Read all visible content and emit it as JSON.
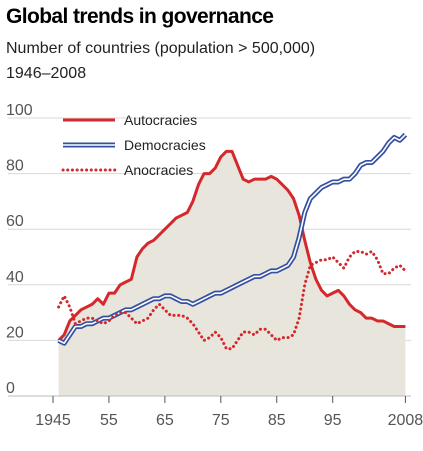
{
  "chart_data": {
    "type": "line",
    "title": "Global trends in governance",
    "subtitle": "Number of countries (population > 500,000)",
    "period": "1946–2008",
    "xlabel": "",
    "ylabel": "",
    "xlim": [
      1945,
      2009
    ],
    "ylim": [
      0,
      100
    ],
    "x_ticks": [
      1945,
      1955,
      1965,
      1975,
      1985,
      1995,
      2008
    ],
    "x_tick_labels": [
      "1945",
      "55",
      "65",
      "75",
      "85",
      "95",
      "2008"
    ],
    "y_ticks": [
      0,
      20,
      40,
      60,
      80,
      100
    ],
    "grid": true,
    "legend_position": "top-left",
    "colors": {
      "Autocracies": "#d4282c",
      "Democracies": "#3550a0",
      "Anocracies": "#d4282c",
      "area_fill": "#e7e5dc",
      "grid": "#d8d8d8",
      "tick": "#555555"
    },
    "series": [
      {
        "name": "Autocracies",
        "style": "solid",
        "filled": true,
        "points": [
          [
            1946,
            20
          ],
          [
            1947,
            22
          ],
          [
            1948,
            27
          ],
          [
            1949,
            29
          ],
          [
            1950,
            31
          ],
          [
            1951,
            32
          ],
          [
            1952,
            33
          ],
          [
            1953,
            35
          ],
          [
            1954,
            33
          ],
          [
            1955,
            37
          ],
          [
            1956,
            37
          ],
          [
            1957,
            40
          ],
          [
            1958,
            41
          ],
          [
            1959,
            42
          ],
          [
            1960,
            50
          ],
          [
            1961,
            53
          ],
          [
            1962,
            55
          ],
          [
            1963,
            56
          ],
          [
            1964,
            58
          ],
          [
            1965,
            60
          ],
          [
            1966,
            62
          ],
          [
            1967,
            64
          ],
          [
            1968,
            65
          ],
          [
            1969,
            66
          ],
          [
            1970,
            70
          ],
          [
            1971,
            76
          ],
          [
            1972,
            80
          ],
          [
            1973,
            80
          ],
          [
            1974,
            82
          ],
          [
            1975,
            86
          ],
          [
            1976,
            88
          ],
          [
            1977,
            88
          ],
          [
            1978,
            83
          ],
          [
            1979,
            78
          ],
          [
            1980,
            77
          ],
          [
            1981,
            78
          ],
          [
            1982,
            78
          ],
          [
            1983,
            78
          ],
          [
            1984,
            79
          ],
          [
            1985,
            78
          ],
          [
            1986,
            76
          ],
          [
            1987,
            74
          ],
          [
            1988,
            71
          ],
          [
            1989,
            65
          ],
          [
            1990,
            56
          ],
          [
            1991,
            48
          ],
          [
            1992,
            42
          ],
          [
            1993,
            38
          ],
          [
            1994,
            36
          ],
          [
            1995,
            37
          ],
          [
            1996,
            38
          ],
          [
            1997,
            36
          ],
          [
            1998,
            33
          ],
          [
            1999,
            31
          ],
          [
            2000,
            30
          ],
          [
            2001,
            28
          ],
          [
            2002,
            28
          ],
          [
            2003,
            27
          ],
          [
            2004,
            27
          ],
          [
            2005,
            26
          ],
          [
            2006,
            25
          ],
          [
            2007,
            25
          ],
          [
            2008,
            25
          ]
        ]
      },
      {
        "name": "Democracies",
        "style": "double",
        "filled": false,
        "points": [
          [
            1946,
            20
          ],
          [
            1947,
            19
          ],
          [
            1948,
            22
          ],
          [
            1949,
            25
          ],
          [
            1950,
            25
          ],
          [
            1951,
            26
          ],
          [
            1952,
            26
          ],
          [
            1953,
            27
          ],
          [
            1954,
            28
          ],
          [
            1955,
            28
          ],
          [
            1956,
            29
          ],
          [
            1957,
            30
          ],
          [
            1958,
            31
          ],
          [
            1959,
            31
          ],
          [
            1960,
            32
          ],
          [
            1961,
            33
          ],
          [
            1962,
            34
          ],
          [
            1963,
            35
          ],
          [
            1964,
            35
          ],
          [
            1965,
            36
          ],
          [
            1966,
            36
          ],
          [
            1967,
            35
          ],
          [
            1968,
            34
          ],
          [
            1969,
            34
          ],
          [
            1970,
            33
          ],
          [
            1971,
            34
          ],
          [
            1972,
            35
          ],
          [
            1973,
            36
          ],
          [
            1974,
            37
          ],
          [
            1975,
            37
          ],
          [
            1976,
            38
          ],
          [
            1977,
            39
          ],
          [
            1978,
            40
          ],
          [
            1979,
            41
          ],
          [
            1980,
            42
          ],
          [
            1981,
            43
          ],
          [
            1982,
            43
          ],
          [
            1983,
            44
          ],
          [
            1984,
            45
          ],
          [
            1985,
            45
          ],
          [
            1986,
            46
          ],
          [
            1987,
            47
          ],
          [
            1988,
            50
          ],
          [
            1989,
            57
          ],
          [
            1990,
            66
          ],
          [
            1991,
            71
          ],
          [
            1992,
            73
          ],
          [
            1993,
            75
          ],
          [
            1994,
            76
          ],
          [
            1995,
            77
          ],
          [
            1996,
            77
          ],
          [
            1997,
            78
          ],
          [
            1998,
            78
          ],
          [
            1999,
            80
          ],
          [
            2000,
            83
          ],
          [
            2001,
            84
          ],
          [
            2002,
            84
          ],
          [
            2003,
            86
          ],
          [
            2004,
            88
          ],
          [
            2005,
            91
          ],
          [
            2006,
            93
          ],
          [
            2007,
            92
          ],
          [
            2008,
            94
          ]
        ]
      },
      {
        "name": "Anocracies",
        "style": "dotted",
        "filled": false,
        "points": [
          [
            1946,
            32
          ],
          [
            1947,
            36
          ],
          [
            1948,
            32
          ],
          [
            1949,
            26
          ],
          [
            1950,
            27
          ],
          [
            1951,
            28
          ],
          [
            1952,
            28
          ],
          [
            1953,
            27
          ],
          [
            1954,
            26
          ],
          [
            1955,
            27
          ],
          [
            1956,
            29
          ],
          [
            1957,
            30
          ],
          [
            1958,
            30
          ],
          [
            1959,
            28
          ],
          [
            1960,
            26
          ],
          [
            1961,
            27
          ],
          [
            1962,
            28
          ],
          [
            1963,
            31
          ],
          [
            1964,
            33
          ],
          [
            1965,
            31
          ],
          [
            1966,
            29
          ],
          [
            1967,
            29
          ],
          [
            1968,
            29
          ],
          [
            1969,
            28
          ],
          [
            1970,
            26
          ],
          [
            1971,
            23
          ],
          [
            1972,
            20
          ],
          [
            1973,
            21
          ],
          [
            1974,
            23
          ],
          [
            1975,
            21
          ],
          [
            1976,
            17
          ],
          [
            1977,
            17
          ],
          [
            1978,
            20
          ],
          [
            1979,
            23
          ],
          [
            1980,
            23
          ],
          [
            1981,
            22
          ],
          [
            1982,
            24
          ],
          [
            1983,
            24
          ],
          [
            1984,
            22
          ],
          [
            1985,
            20
          ],
          [
            1986,
            21
          ],
          [
            1987,
            21
          ],
          [
            1988,
            22
          ],
          [
            1989,
            28
          ],
          [
            1990,
            40
          ],
          [
            1991,
            47
          ],
          [
            1992,
            48
          ],
          [
            1993,
            49
          ],
          [
            1994,
            49
          ],
          [
            1995,
            50
          ],
          [
            1996,
            48
          ],
          [
            1997,
            46
          ],
          [
            1998,
            50
          ],
          [
            1999,
            52
          ],
          [
            2000,
            52
          ],
          [
            2001,
            51
          ],
          [
            2002,
            52
          ],
          [
            2003,
            49
          ],
          [
            2004,
            44
          ],
          [
            2005,
            44
          ],
          [
            2006,
            46
          ],
          [
            2007,
            47
          ],
          [
            2008,
            45
          ]
        ]
      }
    ]
  }
}
